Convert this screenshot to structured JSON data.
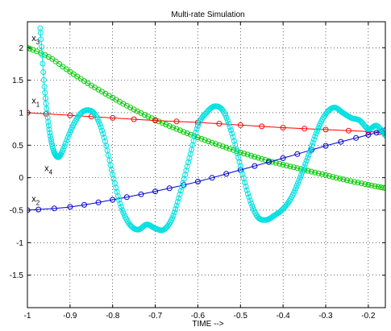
{
  "chart_data": {
    "type": "line",
    "title": "Multi-rate Simulation",
    "xlabel": "TIME -->",
    "ylabel": "",
    "xlim": [
      -1.0,
      -0.16
    ],
    "ylim": [
      -2.0,
      2.4
    ],
    "grid": true,
    "x_ticks": [
      -1,
      -0.9,
      -0.8,
      -0.7,
      -0.6,
      -0.5,
      -0.4,
      -0.3,
      -0.2
    ],
    "y_ticks": [
      -1.5,
      -1,
      -0.5,
      0,
      0.5,
      1,
      1.5,
      2
    ],
    "series": [
      {
        "name": "x3",
        "color": "#00cc00",
        "x": [
          -1.0,
          -0.95,
          -0.9,
          -0.85,
          -0.8,
          -0.75,
          -0.7,
          -0.65,
          -0.6,
          -0.55,
          -0.5,
          -0.45,
          -0.4,
          -0.35,
          -0.3,
          -0.25,
          -0.2,
          -0.16
        ],
        "y": [
          2.0,
          1.86,
          1.63,
          1.42,
          1.23,
          1.05,
          0.89,
          0.75,
          0.62,
          0.5,
          0.39,
          0.29,
          0.2,
          0.12,
          0.04,
          -0.04,
          -0.11,
          -0.16
        ]
      },
      {
        "name": "x1",
        "color": "#ff0000",
        "x": [
          -1.0,
          -0.9,
          -0.8,
          -0.7,
          -0.6,
          -0.5,
          -0.4,
          -0.3,
          -0.2,
          -0.16
        ],
        "y": [
          1.0,
          0.96,
          0.92,
          0.88,
          0.85,
          0.81,
          0.77,
          0.74,
          0.71,
          0.69
        ]
      },
      {
        "name": "x2",
        "color": "#0000cc",
        "x": [
          -1.0,
          -0.9,
          -0.8,
          -0.7,
          -0.6,
          -0.5,
          -0.4,
          -0.3,
          -0.2,
          -0.16
        ],
        "y": [
          -0.5,
          -0.45,
          -0.34,
          -0.21,
          -0.06,
          0.12,
          0.3,
          0.49,
          0.66,
          0.73
        ]
      },
      {
        "name": "x4",
        "color": "#00e0e0",
        "x": [
          -0.97,
          -0.96,
          -0.95,
          -0.94,
          -0.93,
          -0.92,
          -0.9,
          -0.88,
          -0.86,
          -0.84,
          -0.82,
          -0.8,
          -0.78,
          -0.76,
          -0.74,
          -0.72,
          -0.7,
          -0.68,
          -0.66,
          -0.64,
          -0.62,
          -0.6,
          -0.58,
          -0.56,
          -0.54,
          -0.52,
          -0.5,
          -0.48,
          -0.46,
          -0.44,
          -0.42,
          -0.4,
          -0.38,
          -0.36,
          -0.34,
          -0.32,
          -0.3,
          -0.28,
          -0.26,
          -0.24,
          -0.22,
          -0.2,
          -0.18,
          -0.16
        ],
        "y": [
          2.3,
          1.4,
          0.8,
          0.45,
          0.32,
          0.38,
          0.7,
          0.95,
          1.04,
          0.96,
          0.62,
          0.05,
          -0.45,
          -0.72,
          -0.8,
          -0.72,
          -0.78,
          -0.8,
          -0.62,
          -0.2,
          0.3,
          0.8,
          1.0,
          1.1,
          1.02,
          0.68,
          0.18,
          -0.3,
          -0.6,
          -0.65,
          -0.58,
          -0.48,
          -0.3,
          0.0,
          0.35,
          0.72,
          0.98,
          1.08,
          1.0,
          0.92,
          0.88,
          0.75,
          0.8,
          0.65
        ]
      }
    ],
    "annotations": [
      {
        "label": "x",
        "sub": "3",
        "x": -0.99,
        "y": 2.1
      },
      {
        "label": "x",
        "sub": "1",
        "x": -0.99,
        "y": 1.14
      },
      {
        "label": "x",
        "sub": "4",
        "x": -0.96,
        "y": 0.1
      },
      {
        "label": "x",
        "sub": "2",
        "x": -0.99,
        "y": -0.37
      }
    ]
  }
}
